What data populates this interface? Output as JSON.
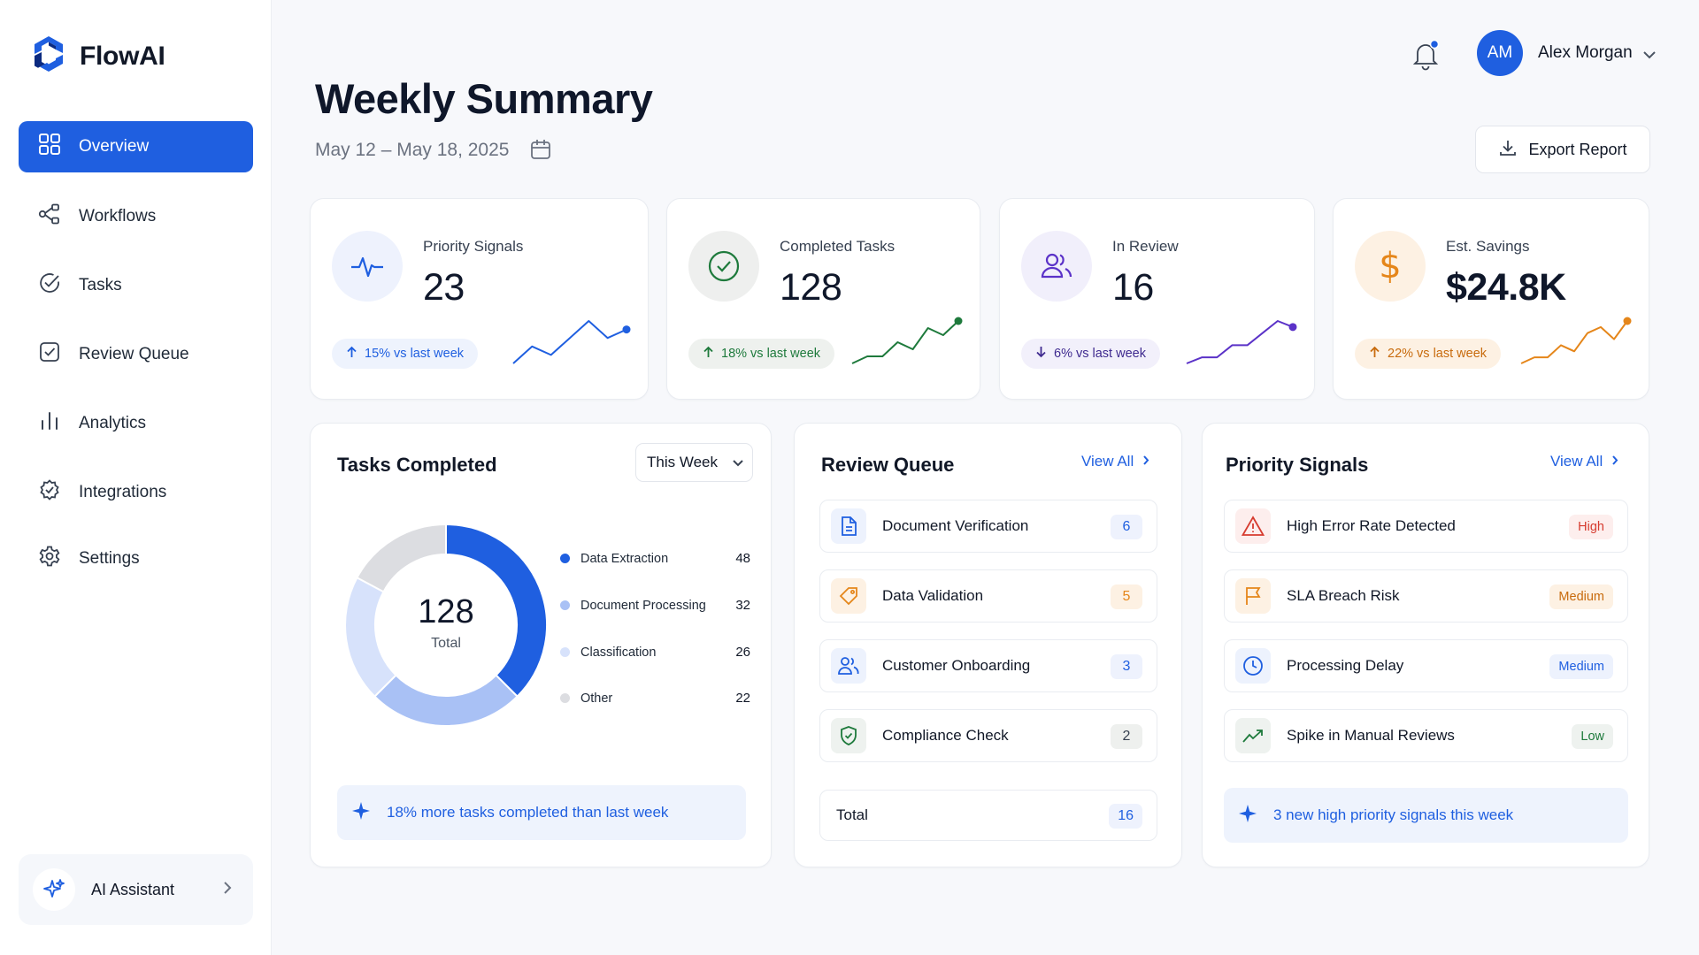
{
  "brand": {
    "name": "FlowAI"
  },
  "sidebar": {
    "items": [
      {
        "label": "Overview",
        "icon": "grid-icon"
      },
      {
        "label": "Workflows",
        "icon": "workflow-icon"
      },
      {
        "label": "Tasks",
        "icon": "check-circle-icon"
      },
      {
        "label": "Review Queue",
        "icon": "check-square-icon"
      },
      {
        "label": "Analytics",
        "icon": "bar-chart-icon"
      },
      {
        "label": "Integrations",
        "icon": "puzzle-icon"
      },
      {
        "label": "Settings",
        "icon": "gear-icon"
      }
    ],
    "active": "Overview",
    "assistant_label": "AI Assistant"
  },
  "header": {
    "user_initials": "AM",
    "user_name": "Alex Morgan",
    "has_notification": true
  },
  "page": {
    "title": "Weekly Summary",
    "date_range": "May 12 – May 18, 2025",
    "export_label": "Export Report"
  },
  "kpis": [
    {
      "label": "Priority Signals",
      "value": "23",
      "change": "15% vs last week",
      "direction": "up",
      "color": "#1f5fe0",
      "icon": "pulse-icon",
      "trend": [
        2,
        4,
        3,
        5,
        7,
        5,
        6
      ]
    },
    {
      "label": "Completed Tasks",
      "value": "128",
      "change": "18% vs last week",
      "direction": "up",
      "color": "#1e7a3c",
      "icon": "check-circle-icon",
      "trend": [
        2,
        3,
        3,
        5,
        4,
        7,
        6,
        8
      ]
    },
    {
      "label": "In Review",
      "value": "16",
      "change": "6% vs last week",
      "direction": "down",
      "color": "#5b32c8",
      "icon": "users-icon",
      "trend": [
        1,
        2,
        2,
        4,
        4,
        6,
        8,
        7
      ]
    },
    {
      "label": "Est. Savings",
      "value": "$24.8K",
      "change": "22% vs last week",
      "direction": "up",
      "color": "#e5861a",
      "icon": "dollar-icon",
      "trend": [
        1,
        2,
        2,
        4,
        3,
        6,
        7,
        5,
        8
      ]
    }
  ],
  "tasks_completed": {
    "title": "Tasks Completed",
    "period": "This Week",
    "total": "128",
    "total_label": "Total",
    "note": "18% more tasks completed than last week"
  },
  "chart_data": {
    "type": "pie",
    "categories": [
      "Data Extraction",
      "Document Processing",
      "Classification",
      "Other"
    ],
    "values": [
      48,
      32,
      26,
      22
    ],
    "colors": [
      "#1f5fe0",
      "#a9c1f5",
      "#d7e2fb",
      "#dcdde1"
    ]
  },
  "review_queue": {
    "title": "Review Queue",
    "view_all": "View All",
    "items": [
      {
        "label": "Document Verification",
        "count": "6",
        "icon": "document-icon",
        "color": "#1f5fe0",
        "bg": "#edf2fd",
        "pill_bg": "#eef2fd"
      },
      {
        "label": "Data Validation",
        "count": "5",
        "icon": "tag-icon",
        "color": "#e5861a",
        "bg": "#fdf1e3",
        "pill_bg": "#fdf1e3"
      },
      {
        "label": "Customer Onboarding",
        "count": "3",
        "icon": "users-icon",
        "color": "#1f5fe0",
        "bg": "#edf2fd",
        "pill_bg": "#eef2fd"
      },
      {
        "label": "Compliance Check",
        "count": "2",
        "icon": "shield-check-icon",
        "color": "#1e7a3c",
        "bg": "#eef2ef",
        "pill_bg": "#eef0ee"
      }
    ],
    "total_label": "Total",
    "total": "16"
  },
  "priority_signals": {
    "title": "Priority Signals",
    "view_all": "View All",
    "items": [
      {
        "label": "High Error Rate Detected",
        "level": "High",
        "icon": "warning-icon",
        "color": "#d63b2f",
        "bg": "#fdeeed",
        "level_color": "#d63b2f",
        "level_bg": "#fdeeed"
      },
      {
        "label": "SLA Breach Risk",
        "level": "Medium",
        "icon": "flag-icon",
        "color": "#e5861a",
        "bg": "#fdf1e3",
        "level_color": "#c86b0d",
        "level_bg": "#fdf1e3"
      },
      {
        "label": "Processing Delay",
        "level": "Medium",
        "icon": "clock-icon",
        "color": "#1f5fe0",
        "bg": "#edf2fd",
        "level_color": "#1f5fe0",
        "level_bg": "#edf2fd"
      },
      {
        "label": "Spike in Manual Reviews",
        "level": "Low",
        "icon": "trend-up-icon",
        "color": "#1e7a3c",
        "bg": "#eef2ef",
        "level_color": "#1e7a3c",
        "level_bg": "#eef2ef"
      }
    ],
    "note": "3 new high priority signals this week"
  }
}
